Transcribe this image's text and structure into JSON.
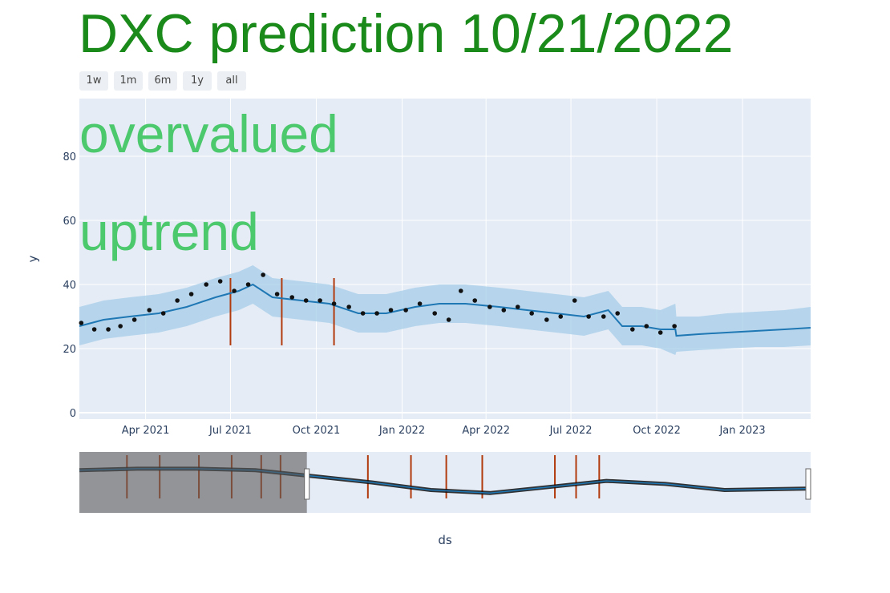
{
  "title": "DXC prediction 10/21/2022",
  "range_buttons": [
    "1w",
    "1m",
    "6m",
    "1y",
    "all"
  ],
  "annotations": [
    "overvalued",
    "uptrend"
  ],
  "colors": {
    "title": "#1a8a1a",
    "annotation": "#4cc86d",
    "trend": "#1f77b4",
    "band": "#a6cee8",
    "points": "#111111",
    "changepoint": "#b23b0e",
    "plot_bg": "#e5ecf6"
  },
  "chart_data": {
    "type": "line",
    "xlabel": "ds",
    "ylabel": "y",
    "ylim": [
      -2,
      98
    ],
    "y_ticks": [
      0,
      20,
      40,
      60,
      80
    ],
    "x_range": [
      "2021-01-20",
      "2023-03-15"
    ],
    "x_ticks": [
      {
        "date": "2021-04-01",
        "label": "Apr 2021"
      },
      {
        "date": "2021-07-01",
        "label": "Jul 2021"
      },
      {
        "date": "2021-10-01",
        "label": "Oct 2021"
      },
      {
        "date": "2022-01-01",
        "label": "Jan 2022"
      },
      {
        "date": "2022-04-01",
        "label": "Apr 2022"
      },
      {
        "date": "2022-07-01",
        "label": "Jul 2022"
      },
      {
        "date": "2022-10-01",
        "label": "Oct 2022"
      },
      {
        "date": "2023-01-01",
        "label": "Jan 2023"
      }
    ],
    "series": [
      {
        "kind": "trend",
        "x": [
          "2021-01-20",
          "2021-02-15",
          "2021-03-15",
          "2021-04-15",
          "2021-05-15",
          "2021-06-15",
          "2021-07-10",
          "2021-07-25",
          "2021-08-15",
          "2021-09-15",
          "2021-10-15",
          "2021-11-15",
          "2021-12-15",
          "2022-01-15",
          "2022-02-10",
          "2022-03-10",
          "2022-04-15",
          "2022-05-15",
          "2022-06-15",
          "2022-07-15",
          "2022-08-10",
          "2022-08-25",
          "2022-09-15",
          "2022-10-05",
          "2022-10-21",
          "2022-10-22",
          "2022-11-15",
          "2022-12-15",
          "2023-01-15",
          "2023-02-15",
          "2023-03-15"
        ],
        "y": [
          27,
          29,
          30,
          31,
          33,
          36,
          38,
          40,
          36,
          35,
          34,
          31,
          31,
          33,
          34,
          34,
          33,
          32,
          31,
          30,
          32,
          27,
          27,
          26,
          26,
          24,
          24.5,
          25,
          25.5,
          26,
          26.5
        ]
      },
      {
        "kind": "band_upper",
        "x": [
          "2021-01-20",
          "2021-02-15",
          "2021-03-15",
          "2021-04-15",
          "2021-05-15",
          "2021-06-15",
          "2021-07-10",
          "2021-07-25",
          "2021-08-15",
          "2021-09-15",
          "2021-10-15",
          "2021-11-15",
          "2021-12-15",
          "2022-01-15",
          "2022-02-10",
          "2022-03-10",
          "2022-04-15",
          "2022-05-15",
          "2022-06-15",
          "2022-07-15",
          "2022-08-10",
          "2022-08-25",
          "2022-09-15",
          "2022-10-05",
          "2022-10-21",
          "2022-10-22",
          "2022-11-15",
          "2022-12-15",
          "2023-01-15",
          "2023-02-15",
          "2023-03-15"
        ],
        "y": [
          33,
          35,
          36,
          37,
          39,
          42,
          44,
          46,
          42,
          41,
          40,
          37,
          37,
          39,
          40,
          40,
          39,
          38,
          37,
          36,
          38,
          33,
          33,
          32,
          34,
          30,
          30,
          31,
          31.5,
          32,
          33
        ]
      },
      {
        "kind": "band_lower",
        "x": [
          "2021-01-20",
          "2021-02-15",
          "2021-03-15",
          "2021-04-15",
          "2021-05-15",
          "2021-06-15",
          "2021-07-10",
          "2021-07-25",
          "2021-08-15",
          "2021-09-15",
          "2021-10-15",
          "2021-11-15",
          "2021-12-15",
          "2022-01-15",
          "2022-02-10",
          "2022-03-10",
          "2022-04-15",
          "2022-05-15",
          "2022-06-15",
          "2022-07-15",
          "2022-08-10",
          "2022-08-25",
          "2022-09-15",
          "2022-10-05",
          "2022-10-21",
          "2022-10-22",
          "2022-11-15",
          "2022-12-15",
          "2023-01-15",
          "2023-02-15",
          "2023-03-15"
        ],
        "y": [
          21,
          23,
          24,
          25,
          27,
          30,
          32,
          34,
          30,
          29,
          28,
          25,
          25,
          27,
          28,
          28,
          27,
          26,
          25,
          24,
          26,
          21,
          21,
          20,
          18,
          19,
          19.5,
          20,
          20.5,
          20.5,
          21
        ]
      },
      {
        "kind": "actual",
        "x": [
          "2021-01-22",
          "2021-02-05",
          "2021-02-20",
          "2021-03-05",
          "2021-03-20",
          "2021-04-05",
          "2021-04-20",
          "2021-05-05",
          "2021-05-20",
          "2021-06-05",
          "2021-06-20",
          "2021-07-05",
          "2021-07-20",
          "2021-08-05",
          "2021-08-20",
          "2021-09-05",
          "2021-09-20",
          "2021-10-05",
          "2021-10-20",
          "2021-11-05",
          "2021-11-20",
          "2021-12-05",
          "2021-12-20",
          "2022-01-05",
          "2022-01-20",
          "2022-02-05",
          "2022-02-20",
          "2022-03-05",
          "2022-03-20",
          "2022-04-05",
          "2022-04-20",
          "2022-05-05",
          "2022-05-20",
          "2022-06-05",
          "2022-06-20",
          "2022-07-05",
          "2022-07-20",
          "2022-08-05",
          "2022-08-20",
          "2022-09-05",
          "2022-09-20",
          "2022-10-05",
          "2022-10-20"
        ],
        "y": [
          28,
          26,
          26,
          27,
          29,
          32,
          31,
          35,
          37,
          40,
          41,
          38,
          40,
          43,
          37,
          36,
          35,
          35,
          34,
          33,
          31,
          31,
          32,
          32,
          34,
          31,
          29,
          38,
          35,
          33,
          32,
          33,
          31,
          29,
          30,
          35,
          30,
          30,
          31,
          26,
          27,
          25,
          27
        ]
      }
    ],
    "changepoints": [
      "2021-07-01",
      "2021-08-25",
      "2021-10-20"
    ],
    "rangeslider": {
      "x_range": [
        "2020-02-01",
        "2023-03-15"
      ],
      "selected_from": "2021-01-20",
      "trend_x": [
        "2020-02-01",
        "2020-05-01",
        "2020-08-01",
        "2020-11-01",
        "2021-02-01",
        "2021-05-01",
        "2021-08-01",
        "2021-11-01",
        "2022-02-01",
        "2022-05-01",
        "2022-08-01",
        "2022-11-01",
        "2023-03-15"
      ],
      "trend_y": [
        38,
        39,
        39,
        38,
        34,
        30,
        25,
        23,
        27,
        31,
        29,
        25,
        26
      ],
      "changepoints": [
        "2020-04-15",
        "2020-06-05",
        "2020-08-05",
        "2020-09-25",
        "2020-11-10",
        "2020-12-10",
        "2021-04-25",
        "2021-07-01",
        "2021-08-25",
        "2021-10-20",
        "2022-02-10",
        "2022-03-15",
        "2022-04-20"
      ],
      "ylim": [
        10,
        50
      ]
    }
  }
}
